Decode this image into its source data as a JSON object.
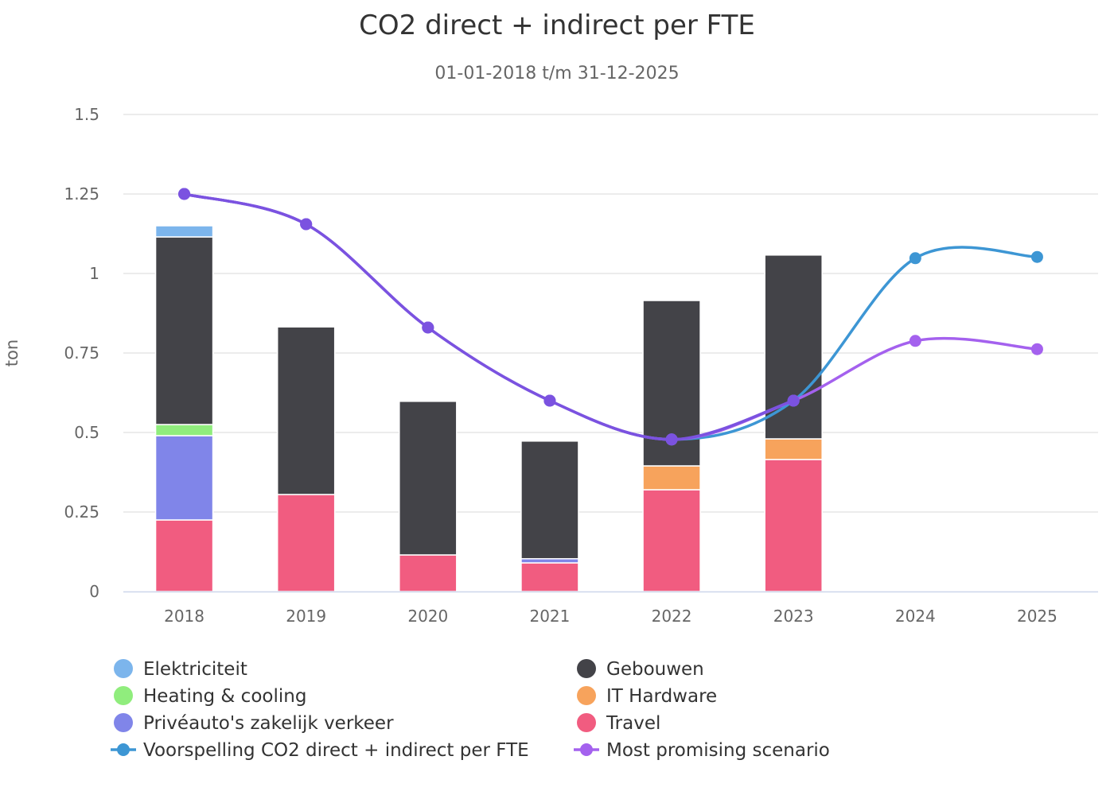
{
  "chart_data": {
    "type": "bar",
    "stacked": true,
    "title": "CO2 direct + indirect per FTE",
    "subtitle": "01-01-2018 t/m 31-12-2025",
    "xlabel": "",
    "ylabel": "ton",
    "ylim": [
      0,
      1.5
    ],
    "yticks": [
      0,
      0.25,
      0.5,
      0.75,
      1,
      1.25,
      1.5
    ],
    "ytick_labels": [
      "0",
      "0.25",
      "0.5",
      "0.75",
      "1",
      "1.25",
      "1.5"
    ],
    "grid": true,
    "legend_position": "bottom",
    "categories": [
      "2018",
      "2019",
      "2020",
      "2021",
      "2022",
      "2023",
      "2024",
      "2025"
    ],
    "series": [
      {
        "name": "Travel",
        "type": "bar",
        "color": "#f15c80",
        "values": [
          0.225,
          0.305,
          0.115,
          0.09,
          0.32,
          0.415,
          null,
          null
        ]
      },
      {
        "name": "Privéauto's zakelijk verkeer",
        "type": "bar",
        "color": "#8085e9",
        "values": [
          0.265,
          0,
          0,
          0.013,
          0,
          0,
          null,
          null
        ]
      },
      {
        "name": "Heating & cooling",
        "type": "bar",
        "color": "#90ed7d",
        "values": [
          0.035,
          0,
          0,
          0,
          0,
          0,
          null,
          null
        ]
      },
      {
        "name": "IT Hardware",
        "type": "bar",
        "color": "#f7a35c",
        "values": [
          0,
          0,
          0,
          0,
          0.075,
          0.065,
          null,
          null
        ]
      },
      {
        "name": "Gebouwen",
        "type": "bar",
        "color": "#434348",
        "values": [
          0.59,
          0.527,
          0.483,
          0.37,
          0.52,
          0.578,
          null,
          null
        ]
      },
      {
        "name": "Elektriciteit",
        "type": "bar",
        "color": "#7cb5ec",
        "values": [
          0.035,
          0,
          0,
          0,
          0,
          0,
          null,
          null
        ]
      },
      {
        "name": "Voorspelling CO2 direct + indirect per FTE",
        "type": "line",
        "color": "#3d96d4",
        "values": [
          1.25,
          1.155,
          0.83,
          0.6,
          0.478,
          0.6,
          1.048,
          1.052
        ]
      },
      {
        "name": "Most promising scenario",
        "type": "line",
        "color": "#a461ee",
        "values": [
          1.25,
          1.155,
          0.83,
          0.6,
          0.478,
          0.6,
          0.788,
          0.762
        ]
      }
    ],
    "legend_order": [
      "Elektriciteit",
      "Gebouwen",
      "Heating & cooling",
      "IT Hardware",
      "Privéauto's zakelijk verkeer",
      "Travel",
      "Voorspelling CO2 direct + indirect per FTE",
      "Most promising scenario"
    ],
    "overlap_line_color": "#7b52e0"
  }
}
